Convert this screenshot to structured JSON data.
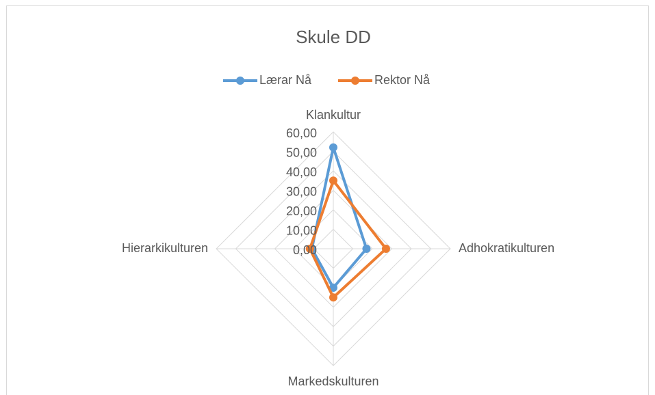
{
  "chart_data": {
    "type": "radar",
    "title": "Skule DD",
    "categories": [
      "Klankultur",
      "Adhokratikulturen",
      "Markedskulturen",
      "Hierarkikulturen"
    ],
    "series": [
      {
        "name": "Lærar Nå",
        "color": "#5b9bd5",
        "values": [
          52,
          17,
          20,
          11
        ]
      },
      {
        "name": "Rektor Nå",
        "color": "#ed7d31",
        "values": [
          35,
          27,
          25,
          12
        ]
      }
    ],
    "ylim": [
      0,
      60
    ],
    "yticks": [
      {
        "value": 0,
        "label": "0,00"
      },
      {
        "value": 10,
        "label": "10,00"
      },
      {
        "value": 20,
        "label": "20,00"
      },
      {
        "value": 30,
        "label": "30,00"
      },
      {
        "value": 40,
        "label": "40,00"
      },
      {
        "value": 50,
        "label": "50,00"
      },
      {
        "value": 60,
        "label": "60,00"
      }
    ],
    "grid": true,
    "legend": "top"
  }
}
